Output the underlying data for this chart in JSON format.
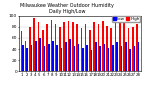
{
  "title": "Milwaukee Weather Outdoor Humidity",
  "subtitle": "Daily High/Low",
  "bar_color_high": "#ff0000",
  "bar_color_low": "#0000ff",
  "legend_high": "High",
  "legend_low": "Low",
  "background_color": "#ffffff",
  "plot_bg": "#ffffff",
  "ylim": [
    0,
    100
  ],
  "ytick_labels": [
    "0",
    "20",
    "40",
    "60",
    "80",
    "100"
  ],
  "ytick_vals": [
    0,
    20,
    40,
    60,
    80,
    100
  ],
  "ylabel_fontsize": 3.2,
  "xlabel_fontsize": 2.8,
  "title_fontsize": 3.5,
  "legend_fontsize": 3.0,
  "days": [
    "1",
    "2",
    "3",
    "4",
    "5",
    "6",
    "7",
    "8",
    "9",
    "10",
    "11",
    "12",
    "13",
    "14",
    "15",
    "16",
    "17",
    "18",
    "19",
    "20",
    "21",
    "22",
    "23",
    "24",
    "25",
    "26",
    "27",
    "28"
  ],
  "highs": [
    72,
    55,
    80,
    95,
    88,
    75,
    85,
    92,
    85,
    80,
    88,
    90,
    88,
    85,
    78,
    85,
    75,
    88,
    85,
    90,
    82,
    78,
    88,
    92,
    90,
    78,
    80,
    85
  ],
  "lows": [
    48,
    42,
    48,
    55,
    60,
    45,
    50,
    55,
    48,
    42,
    52,
    58,
    45,
    50,
    42,
    48,
    38,
    52,
    45,
    50,
    42,
    48,
    52,
    45,
    52,
    40,
    45,
    52
  ]
}
